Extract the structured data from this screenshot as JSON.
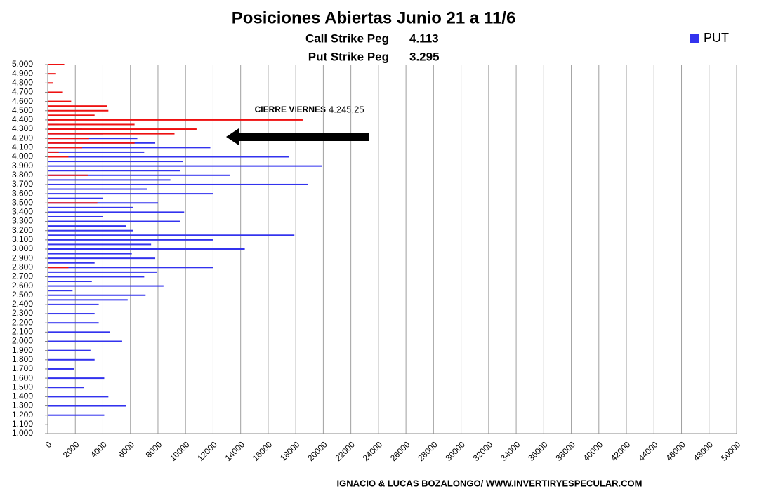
{
  "chart_data": {
    "type": "barh",
    "title": "Posiciones Abiertas Junio 21 a 11/6",
    "subtitles": [
      [
        "Call Strike Peg",
        "4.113"
      ],
      [
        "Put Strike Peg",
        "3.295"
      ]
    ],
    "annotation": [
      "CIERRE VIERNES",
      "4.245,25"
    ],
    "footer": "IGNACIO & LUCAS BOZALONGO/ WWW.INVERTIRYESPECULAR.COM",
    "categories": [
      1200,
      1300,
      1400,
      1500,
      1600,
      1700,
      1800,
      1900,
      2000,
      2100,
      2200,
      2300,
      2400,
      2450,
      2500,
      2550,
      2600,
      2650,
      2700,
      2750,
      2800,
      2850,
      2900,
      2950,
      3000,
      3050,
      3100,
      3150,
      3200,
      3250,
      3300,
      3350,
      3400,
      3450,
      3500,
      3550,
      3600,
      3650,
      3700,
      3750,
      3800,
      3850,
      3900,
      3950,
      4000,
      4050,
      4100,
      4150,
      4200,
      4250,
      4300,
      4350,
      4400,
      4450,
      4500,
      4550,
      4600,
      4700,
      4800,
      4900,
      5000
    ],
    "series": [
      {
        "name": "PUT",
        "color": "#3333ee",
        "values": [
          4100,
          5700,
          4400,
          2600,
          4100,
          1900,
          3400,
          3100,
          5400,
          4500,
          3700,
          3400,
          3700,
          5800,
          7100,
          1800,
          8400,
          3200,
          7000,
          7900,
          12000,
          3400,
          7800,
          6100,
          14300,
          7500,
          12000,
          17900,
          6200,
          5700,
          9600,
          4000,
          9900,
          6200,
          8000,
          4000,
          12000,
          7200,
          18900,
          8900,
          13200,
          9600,
          19900,
          9800,
          17500,
          7000,
          11800,
          7800,
          6500,
          4000,
          2500,
          800,
          500,
          0,
          0,
          0,
          0,
          0,
          0,
          0,
          0
        ]
      },
      {
        "color": "#ee1111",
        "values": [
          0,
          0,
          0,
          0,
          0,
          0,
          0,
          0,
          0,
          0,
          0,
          0,
          0,
          0,
          0,
          0,
          0,
          0,
          0,
          0,
          1500,
          0,
          0,
          0,
          0,
          0,
          0,
          0,
          0,
          0,
          0,
          0,
          0,
          0,
          3600,
          0,
          0,
          0,
          0,
          0,
          2900,
          0,
          0,
          0,
          1500,
          800,
          2500,
          6300,
          3000,
          9200,
          10800,
          6300,
          18500,
          3400,
          4400,
          4300,
          1700,
          1100,
          400,
          600,
          1200
        ]
      }
    ],
    "xlim": [
      0,
      50000
    ],
    "xticks": [
      0,
      2000,
      4000,
      6000,
      8000,
      10000,
      12000,
      14000,
      16000,
      18000,
      20000,
      22000,
      24000,
      26000,
      28000,
      30000,
      32000,
      34000,
      36000,
      38000,
      40000,
      42000,
      44000,
      46000,
      48000,
      50000
    ],
    "ylim": [
      1000,
      5000
    ],
    "yticks": [
      {
        "value": 5000,
        "label": "5.000"
      },
      {
        "value": 4900,
        "label": "4.900"
      },
      {
        "value": 4800,
        "label": "4.800"
      },
      {
        "value": 4700,
        "label": "4.700"
      },
      {
        "value": 4600,
        "label": "4.600"
      },
      {
        "value": 4500,
        "label": "4.500"
      },
      {
        "value": 4400,
        "label": "4.400"
      },
      {
        "value": 4300,
        "label": "4.300"
      },
      {
        "value": 4200,
        "label": "4.200"
      },
      {
        "value": 4100,
        "label": "4.100"
      },
      {
        "value": 4000,
        "label": "4.000"
      },
      {
        "value": 3900,
        "label": "3.900"
      },
      {
        "value": 3800,
        "label": "3.800"
      },
      {
        "value": 3700,
        "label": "3.700"
      },
      {
        "value": 3600,
        "label": "3.600"
      },
      {
        "value": 3500,
        "label": "3.500"
      },
      {
        "value": 3400,
        "label": "3.400"
      },
      {
        "value": 3300,
        "label": "3.300"
      },
      {
        "value": 3200,
        "label": "3.200"
      },
      {
        "value": 3100,
        "label": "3.100"
      },
      {
        "value": 3000,
        "label": "3.000"
      },
      {
        "value": 2900,
        "label": "2.900"
      },
      {
        "value": 2800,
        "label": "2.800"
      },
      {
        "value": 2700,
        "label": "2.700"
      },
      {
        "value": 2600,
        "label": "2.600"
      },
      {
        "value": 2500,
        "label": "2.500"
      },
      {
        "value": 2400,
        "label": "2.400"
      },
      {
        "value": 2300,
        "label": "2.300"
      },
      {
        "value": 2200,
        "label": "2.200"
      },
      {
        "value": 2100,
        "label": "2.100"
      },
      {
        "value": 2000,
        "label": "2.000"
      },
      {
        "value": 1900,
        "label": "1.900"
      },
      {
        "value": 1800,
        "label": "1.800"
      },
      {
        "value": 1700,
        "label": "1.700"
      },
      {
        "value": 1600,
        "label": "1.600"
      },
      {
        "value": 1500,
        "label": "1.500"
      },
      {
        "value": 1400,
        "label": "1.400"
      },
      {
        "value": 1300,
        "label": "1.300"
      },
      {
        "value": 1200,
        "label": "1.200"
      },
      {
        "value": 1100,
        "label": "1.100"
      },
      {
        "value": 1000,
        "label": "1.000"
      }
    ],
    "grid": true,
    "legend": "top-right"
  }
}
